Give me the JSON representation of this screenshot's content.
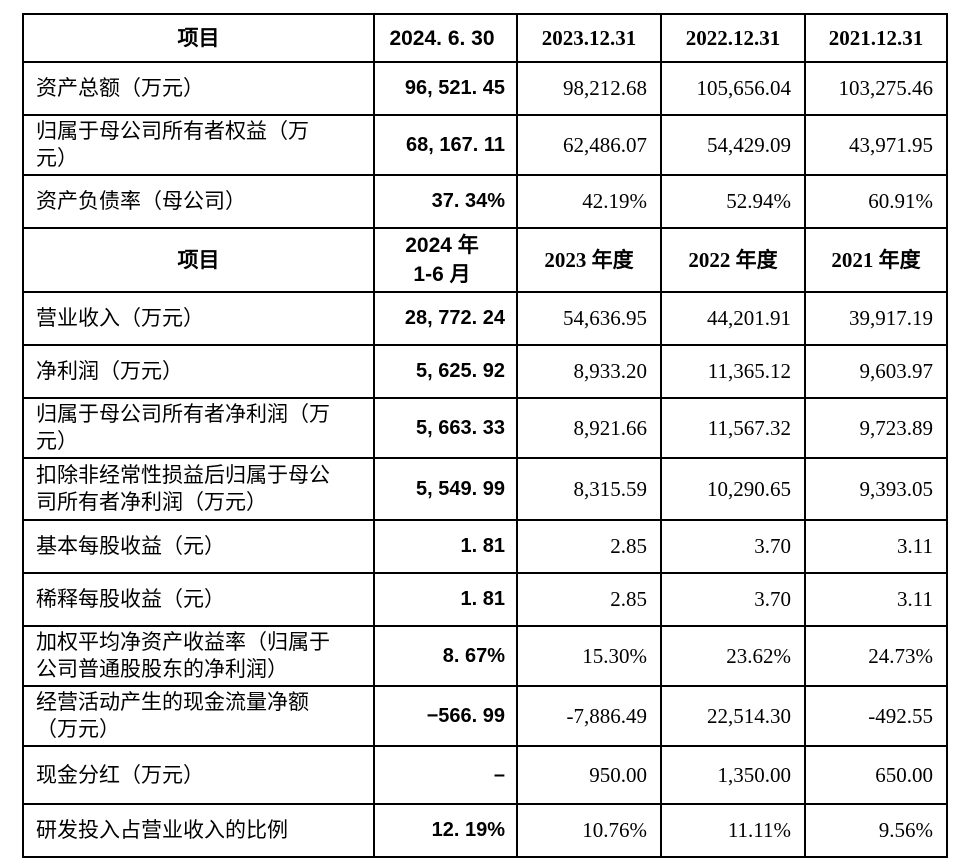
{
  "table": {
    "rows": [
      {
        "type": "header",
        "label": "项目",
        "values": [
          "2024. 6. 30",
          "2023.12.31",
          "2022.12.31",
          "2021.12.31"
        ]
      },
      {
        "type": "data",
        "label": "资产总额（万元）",
        "values": [
          "96, 521. 45",
          "98,212.68",
          "105,656.04",
          "103,275.46"
        ]
      },
      {
        "type": "data",
        "label": "归属于母公司所有者权益（万元）",
        "values": [
          "68, 167. 11",
          "62,486.07",
          "54,429.09",
          "43,971.95"
        ]
      },
      {
        "type": "data",
        "label": "资产负债率（母公司）",
        "values": [
          "37. 34%",
          "42.19%",
          "52.94%",
          "60.91%"
        ]
      },
      {
        "type": "header",
        "label": "项目",
        "values": [
          "2024 年\n1-6 月",
          "2023 年度",
          "2022 年度",
          "2021 年度"
        ]
      },
      {
        "type": "data",
        "label": "营业收入（万元）",
        "values": [
          "28, 772. 24",
          "54,636.95",
          "44,201.91",
          "39,917.19"
        ]
      },
      {
        "type": "data",
        "label": "净利润（万元）",
        "values": [
          "5, 625. 92",
          "8,933.20",
          "11,365.12",
          "9,603.97"
        ]
      },
      {
        "type": "data",
        "label": "归属于母公司所有者净利润（万元）",
        "values": [
          "5, 663. 33",
          "8,921.66",
          "11,567.32",
          "9,723.89"
        ]
      },
      {
        "type": "data",
        "label": "扣除非经常性损益后归属于母公司所有者净利润（万元）",
        "values": [
          "5, 549. 99",
          "8,315.59",
          "10,290.65",
          "9,393.05"
        ]
      },
      {
        "type": "data",
        "label": "基本每股收益（元）",
        "values": [
          "1. 81",
          "2.85",
          "3.70",
          "3.11"
        ]
      },
      {
        "type": "data",
        "label": "稀释每股收益（元）",
        "values": [
          "1. 81",
          "2.85",
          "3.70",
          "3.11"
        ]
      },
      {
        "type": "data",
        "label": "加权平均净资产收益率（归属于公司普通股股东的净利润）",
        "values": [
          "8. 67%",
          "15.30%",
          "23.62%",
          "24.73%"
        ]
      },
      {
        "type": "data",
        "label": "经营活动产生的现金流量净额（万元）",
        "values": [
          "−566. 99",
          "-7,886.49",
          "22,514.30",
          "-492.55"
        ]
      },
      {
        "type": "data",
        "label": "现金分红（万元）",
        "values": [
          "–",
          "950.00",
          "1,350.00",
          "650.00"
        ]
      },
      {
        "type": "data",
        "label": "研发投入占营业收入的比例",
        "values": [
          "12. 19%",
          "10.76%",
          "11.11%",
          "9.56%"
        ]
      }
    ]
  }
}
